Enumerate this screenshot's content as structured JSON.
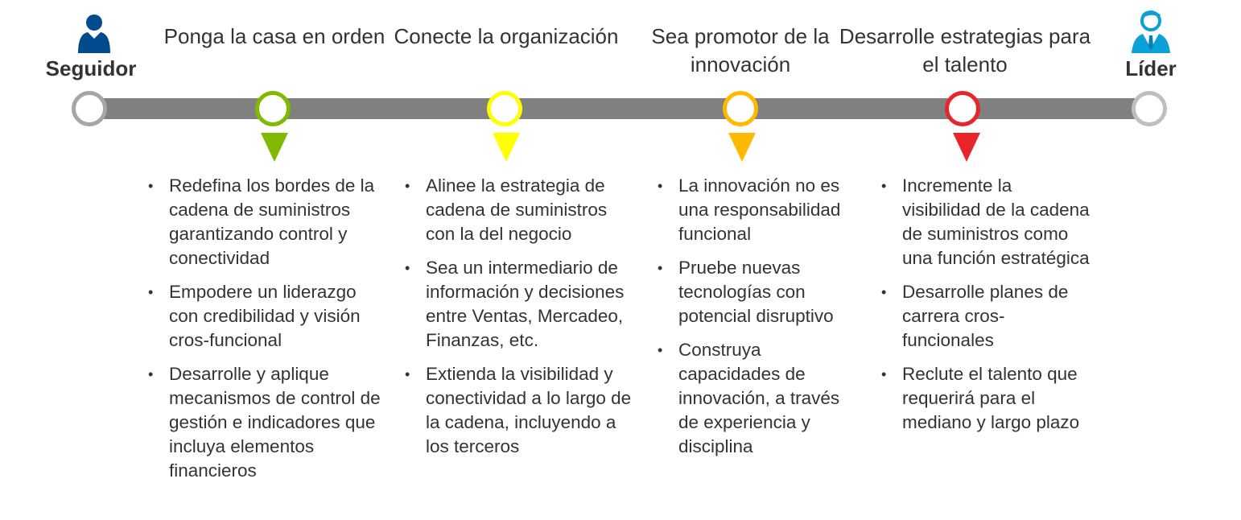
{
  "start": {
    "label": "Seguidor",
    "icon": "follower-person-icon",
    "color": "#004b8d"
  },
  "end": {
    "label": "Líder",
    "icon": "leader-person-icon",
    "color": "#0aa0d8"
  },
  "stages": [
    {
      "title": "Ponga la casa en orden",
      "color": "#7fba00",
      "items": [
        "Redefina los bordes de la cadena de suministros garantizando control y conectividad",
        "Empodere un liderazgo con credibilidad y visión cros-funcional",
        "Desarrolle y aplique mecanismos de control de gestión e indicadores que incluya elementos financieros"
      ]
    },
    {
      "title": "Conecte la organización",
      "color": "#ffff00",
      "items": [
        "Alinee la estrategia de cadena de suministros con la del negocio",
        "Sea un intermediario de información y decisiones entre Ventas, Mercadeo, Finanzas, etc.",
        "Extienda la visibilidad y conectividad a lo largo de la cadena, incluyendo a los terceros"
      ]
    },
    {
      "title": "Sea promotor de la innovación",
      "color": "#ffb900",
      "items": [
        "La innovación no es una responsabilidad funcional",
        "Pruebe nuevas tecnologías con potencial disruptivo",
        "Construya capacidades de innovación, a través de experiencia y disciplina"
      ]
    },
    {
      "title": "Desarrolle estrategias para el talento",
      "color": "#e8262a",
      "items": [
        "Incremente la visibilidad de la cadena de suministros como una función estratégica",
        "Desarrolle planes de carrera cros-funcionales",
        "Reclute el talento que requerirá para el mediano y largo plazo"
      ]
    }
  ]
}
